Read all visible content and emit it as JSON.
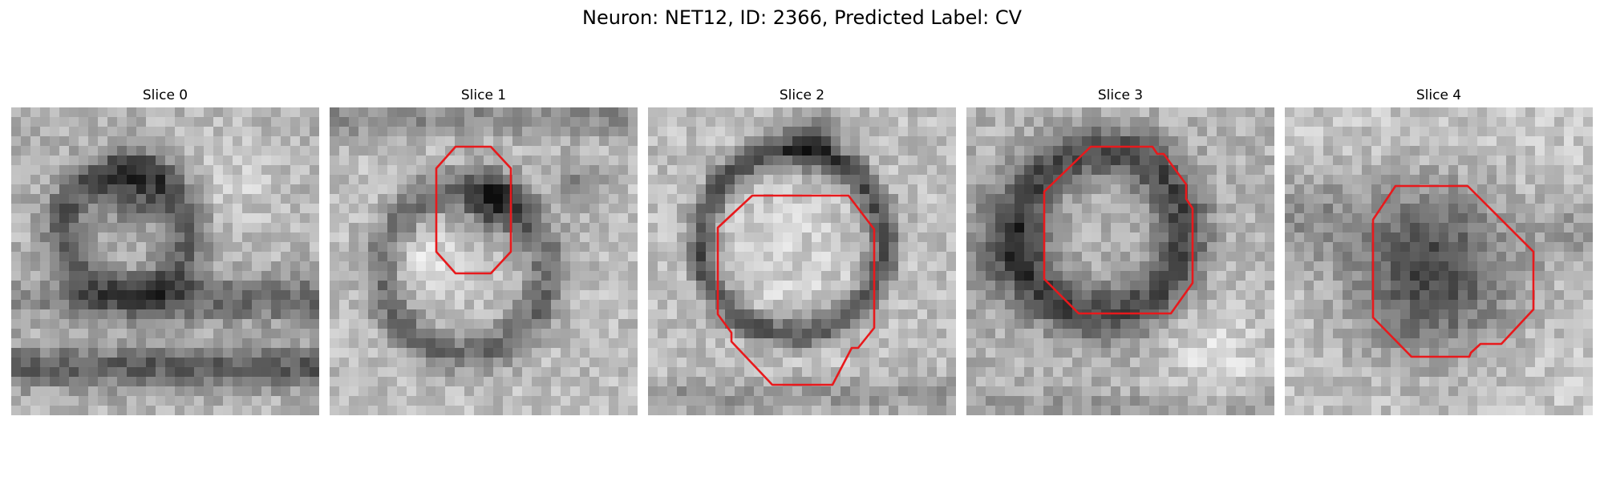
{
  "figure": {
    "title": "Neuron: NET12, ID: 2366, Predicted Label: CV"
  },
  "panels": [
    {
      "title": "Slice 0",
      "has_contour": false,
      "pattern": "membrane"
    },
    {
      "title": "Slice 1",
      "has_contour": true,
      "pattern": "small-ring"
    },
    {
      "title": "Slice 2",
      "has_contour": true,
      "pattern": "large-ring"
    },
    {
      "title": "Slice 3",
      "has_contour": true,
      "pattern": "thick-ring"
    },
    {
      "title": "Slice 4",
      "has_contour": true,
      "pattern": "dark-blob"
    }
  ],
  "colors": {
    "contour": "#e8191c",
    "background": "#ffffff"
  },
  "image": {
    "colormap": "grayscale",
    "grid_cells": 32
  }
}
